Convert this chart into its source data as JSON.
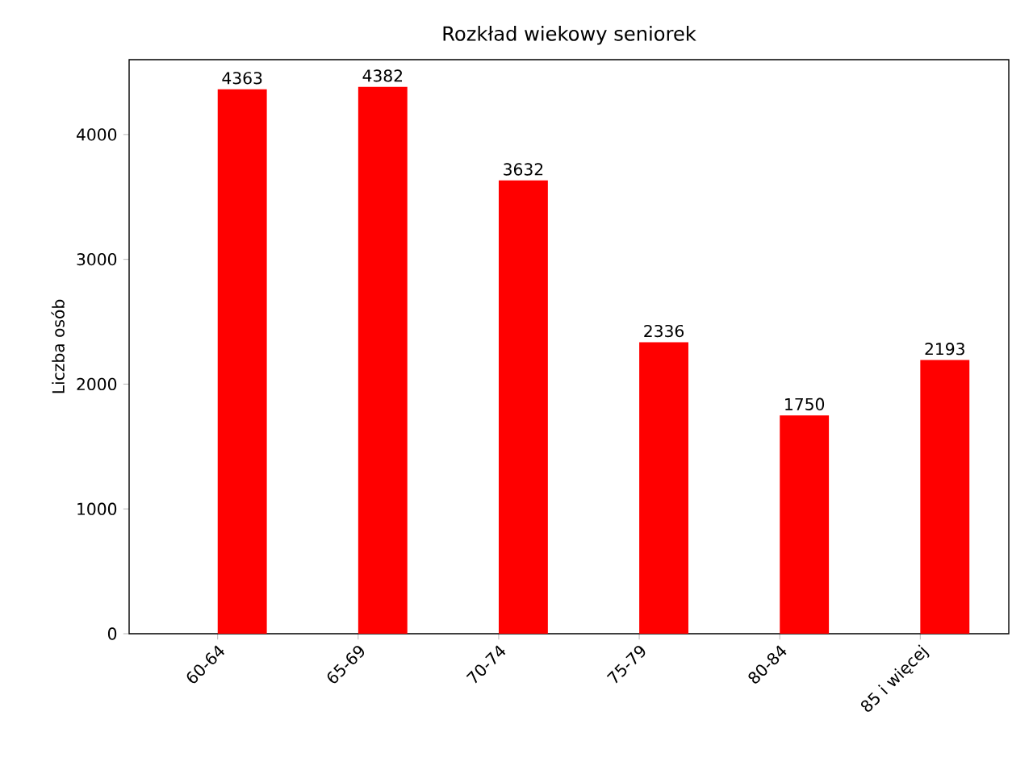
{
  "chart_data": {
    "type": "bar",
    "title": "Rozkład wiekowy seniorek",
    "ylabel": "Liczba osób",
    "categories": [
      "60-64",
      "65-69",
      "70-74",
      "75-79",
      "80-84",
      "85 i więcej"
    ],
    "values": [
      4363,
      4382,
      3632,
      2336,
      1750,
      2193
    ],
    "color": "#ff0000",
    "ylim": [
      0,
      4600
    ],
    "yticks": [
      0,
      1000,
      2000,
      3000,
      4000
    ],
    "data_labels": true
  }
}
